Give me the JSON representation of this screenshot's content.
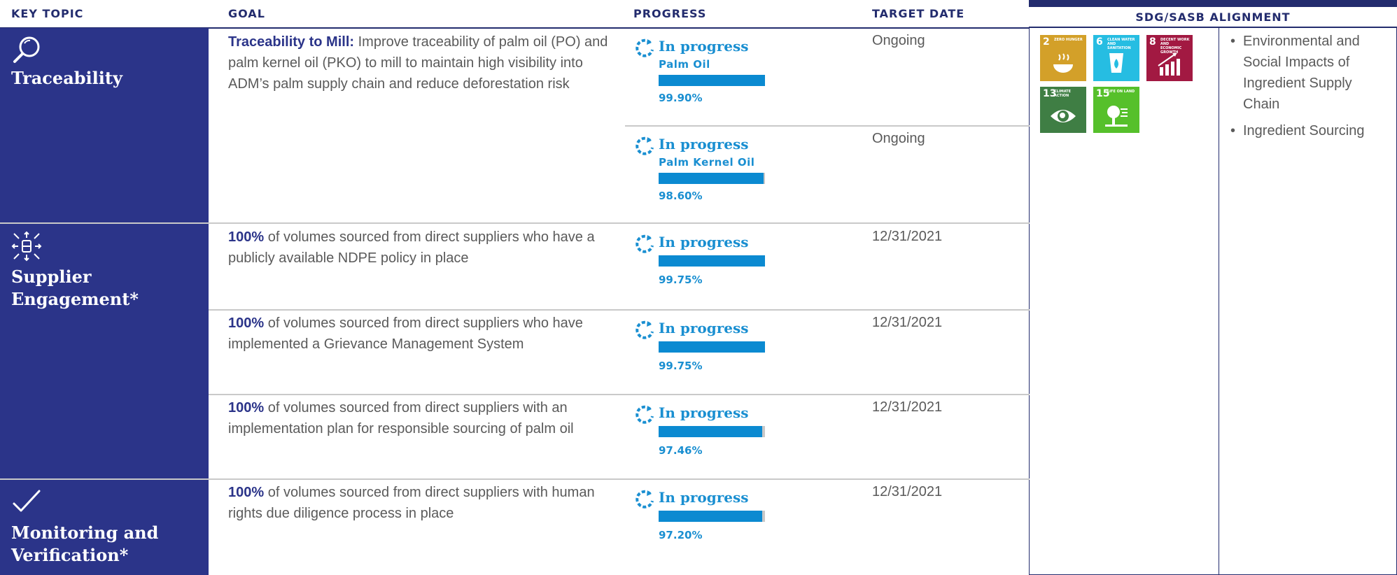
{
  "headers": {
    "key_topic": "KEY TOPIC",
    "goal": "GOAL",
    "progress": "PROGRESS",
    "target_date": "TARGET DATE",
    "sdg": "SDG/SASB ALIGNMENT"
  },
  "topics": [
    {
      "label": "Traceability",
      "icon": "magnifier-icon"
    },
    {
      "label": "Supplier Engagement*",
      "icon": "supplier-network-icon"
    },
    {
      "label": "Monitoring and Verification*",
      "icon": "checkmark-icon"
    }
  ],
  "goals": [
    {
      "bold": "Traceability to Mill:",
      "text": " Improve traceability of palm oil (PO) and palm kernel oil (PKO) to mill to maintain high visibility into ADM’s palm supply chain and reduce deforestation risk"
    },
    {
      "bold": "100%",
      "text": " of volumes sourced from direct suppliers who have a publicly available NDPE policy in place"
    },
    {
      "bold": "100%",
      "text": " of volumes sourced from direct suppliers who have implemented a Grievance Management System"
    },
    {
      "bold": "100%",
      "text": " of volumes sourced from direct suppliers with an implementation plan for responsible sourcing of palm oil"
    },
    {
      "bold": "100%",
      "text": " of volumes sourced from direct suppliers with human rights due diligence process in place"
    }
  ],
  "progress": [
    {
      "status": "In progress",
      "sub": "Palm Oil",
      "pct": "99.90%",
      "value": 0.999
    },
    {
      "status": "In progress",
      "sub": "Palm Kernel Oil",
      "pct": "98.60%",
      "value": 0.986
    },
    {
      "status": "In progress",
      "sub": "",
      "pct": "99.75%",
      "value": 0.9975
    },
    {
      "status": "In progress",
      "sub": "",
      "pct": "99.75%",
      "value": 0.9975
    },
    {
      "status": "In progress",
      "sub": "",
      "pct": "97.46%",
      "value": 0.9746
    },
    {
      "status": "In progress",
      "sub": "",
      "pct": "97.20%",
      "value": 0.972
    }
  ],
  "dates": [
    "Ongoing",
    "Ongoing",
    "12/31/2021",
    "12/31/2021",
    "12/31/2021",
    "12/31/2021"
  ],
  "sdg_tiles": [
    {
      "num": "2",
      "title": "Zero Hunger",
      "color": "#d3a029",
      "icon": "bowl-icon"
    },
    {
      "num": "6",
      "title": "Clean Water and Sanitation",
      "color": "#26bde2",
      "icon": "water-drop-icon"
    },
    {
      "num": "8",
      "title": "Decent Work and Economic Growth",
      "color": "#a21942",
      "icon": "growth-chart-icon"
    },
    {
      "num": "13",
      "title": "Climate Action",
      "color": "#3f7e44",
      "icon": "eye-globe-icon"
    },
    {
      "num": "15",
      "title": "Life on Land",
      "color": "#56c02b",
      "icon": "tree-icon"
    }
  ],
  "sasb": [
    "Environmental and Social Impacts of Ingredient Supply Chain",
    "Ingredient Sourcing"
  ],
  "colors": {
    "navy": "#2b3489",
    "blue": "#1a8fd1",
    "bar": "#0b8ad1"
  }
}
